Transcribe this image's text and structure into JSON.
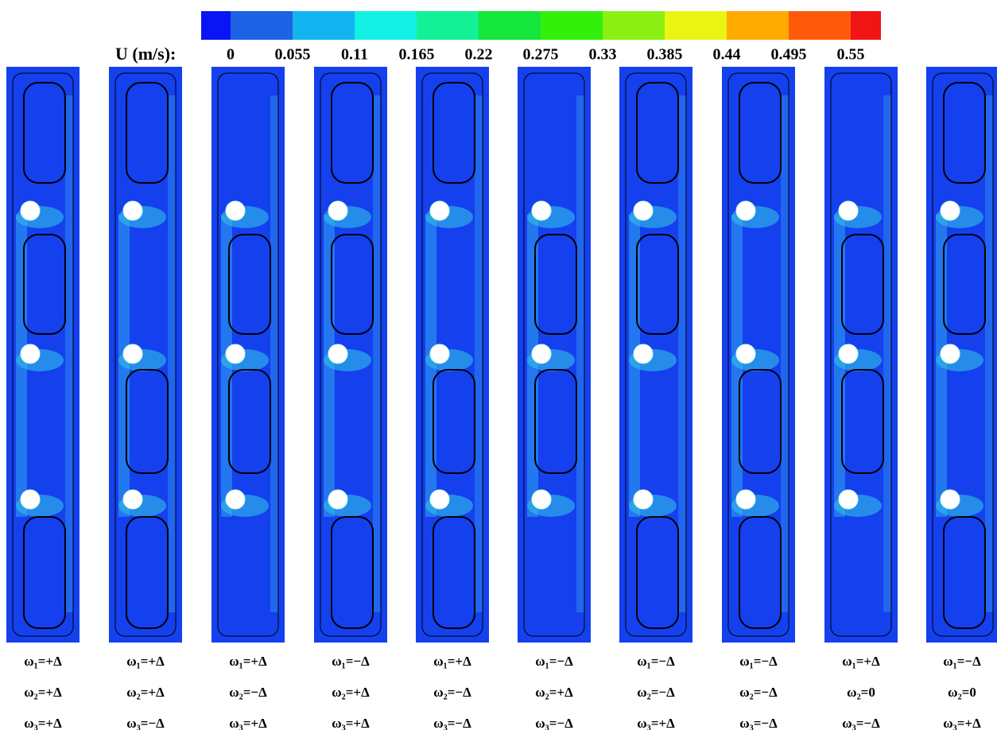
{
  "colorbar": {
    "label": "U (m/s):",
    "ticks": [
      "0",
      "0.055",
      "0.11",
      "0.165",
      "0.22",
      "0.275",
      "0.33",
      "0.385",
      "0.44",
      "0.495",
      "0.55"
    ],
    "colors": [
      "#0a14f5",
      "#1e63e6",
      "#14b4f0",
      "#14f0e4",
      "#14f096",
      "#14e63c",
      "#32f00a",
      "#8cf014",
      "#ebf514",
      "#ffaa00",
      "#ff5a0a",
      "#f01414"
    ]
  },
  "panels": [
    {
      "w1": "ω₁=+Δ",
      "w2": "ω₂=+Δ",
      "w3": "ω₃=+Δ"
    },
    {
      "w1": "ω₁=+Δ",
      "w2": "ω₂=+Δ",
      "w3": "ω₃=−Δ"
    },
    {
      "w1": "ω₁=+Δ",
      "w2": "ω₂=−Δ",
      "w3": "ω₃=+Δ"
    },
    {
      "w1": "ω₁=−Δ",
      "w2": "ω₂=+Δ",
      "w3": "ω₃=+Δ"
    },
    {
      "w1": "ω₁=+Δ",
      "w2": "ω₂=−Δ",
      "w3": "ω₃=−Δ"
    },
    {
      "w1": "ω₁=−Δ",
      "w2": "ω₂=+Δ",
      "w3": "ω₃=−Δ"
    },
    {
      "w1": "ω₁=−Δ",
      "w2": "ω₂=−Δ",
      "w3": "ω₃=+Δ"
    },
    {
      "w1": "ω₁=−Δ",
      "w2": "ω₂=−Δ",
      "w3": "ω₃=−Δ"
    },
    {
      "w1": "ω₁=+Δ",
      "w2": "ω₂=0",
      "w3": "ω₃=−Δ"
    },
    {
      "w1": "ω₁=−Δ",
      "w2": "ω₂=0",
      "w3": "ω₃=+Δ"
    }
  ]
}
